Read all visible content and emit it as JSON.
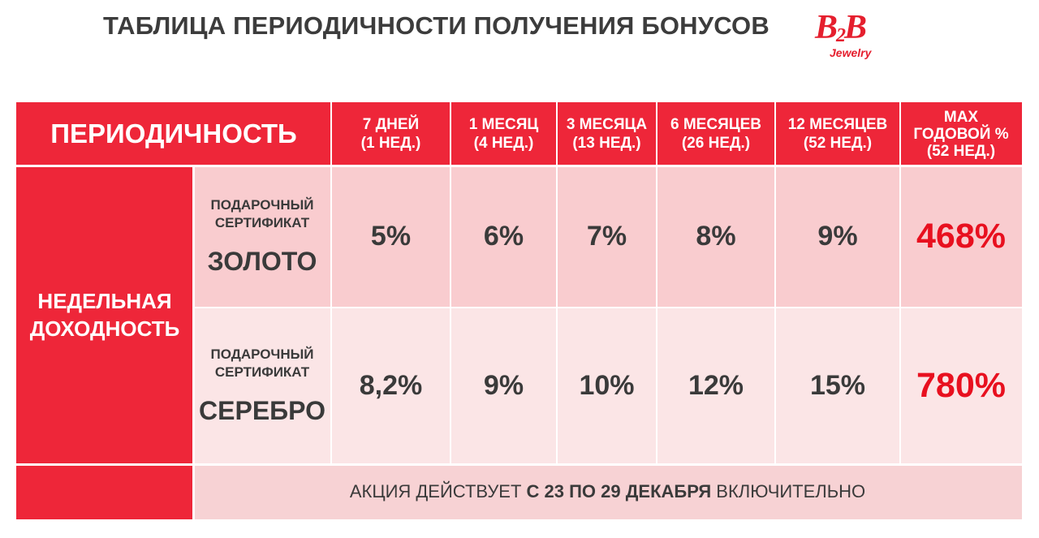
{
  "title": "ТАБЛИЦА ПЕРИОДИЧНОСТИ ПОЛУЧЕНИЯ БОНУСОВ",
  "logo": {
    "b2b_left": "B",
    "b2b_sub": "2",
    "b2b_right": "B",
    "jewelry": "Jewelry",
    "color": "#e51f2e"
  },
  "header": {
    "periodicity": "ПЕРИОДИЧНОСТЬ",
    "columns": [
      {
        "line1": "7 ДНЕЙ",
        "line2": "(1 НЕД.)"
      },
      {
        "line1": "1 МЕСЯЦ",
        "line2": "(4 НЕД.)"
      },
      {
        "line1": "3 МЕСЯЦА",
        "line2": "(13 НЕД.)"
      },
      {
        "line1": "6 МЕСЯЦЕВ",
        "line2": "(26 НЕД.)"
      },
      {
        "line1": "12 МЕСЯЦЕВ",
        "line2": "(52 НЕД.)"
      },
      {
        "line1": "MAX",
        "line2": "ГОДОВОЙ %",
        "line3": "(52 НЕД.)"
      }
    ]
  },
  "side_label": {
    "line1": "НЕДЕЛЬНАЯ",
    "line2": "ДОХОДНОСТЬ"
  },
  "rows": [
    {
      "cert_line1": "ПОДАРОЧНЫЙ",
      "cert_line2": "СЕРТИФИКАТ",
      "metal": "ЗОЛОТО",
      "values": [
        "5%",
        "6%",
        "7%",
        "8%",
        "9%"
      ],
      "max": "468%"
    },
    {
      "cert_line1": "ПОДАРОЧНЫЙ",
      "cert_line2": "СЕРТИФИКАТ",
      "metal": "СЕРЕБРО",
      "values": [
        "8,2%",
        "9%",
        "10%",
        "12%",
        "15%"
      ],
      "max": "780%"
    }
  ],
  "footer": {
    "part1": "АКЦИЯ ДЕЙСТВУЕТ ",
    "part2": "С 23 ПО 29 ДЕКАБРЯ",
    "part3": " ВКЛЮЧИТЕЛЬНО"
  },
  "colors": {
    "accent_red": "#ee2639",
    "max_value_red": "#e8101f",
    "row1_bg": "#f9cccf",
    "row2_bg": "#fbe5e6",
    "text_dark": "#3a3a3a"
  }
}
